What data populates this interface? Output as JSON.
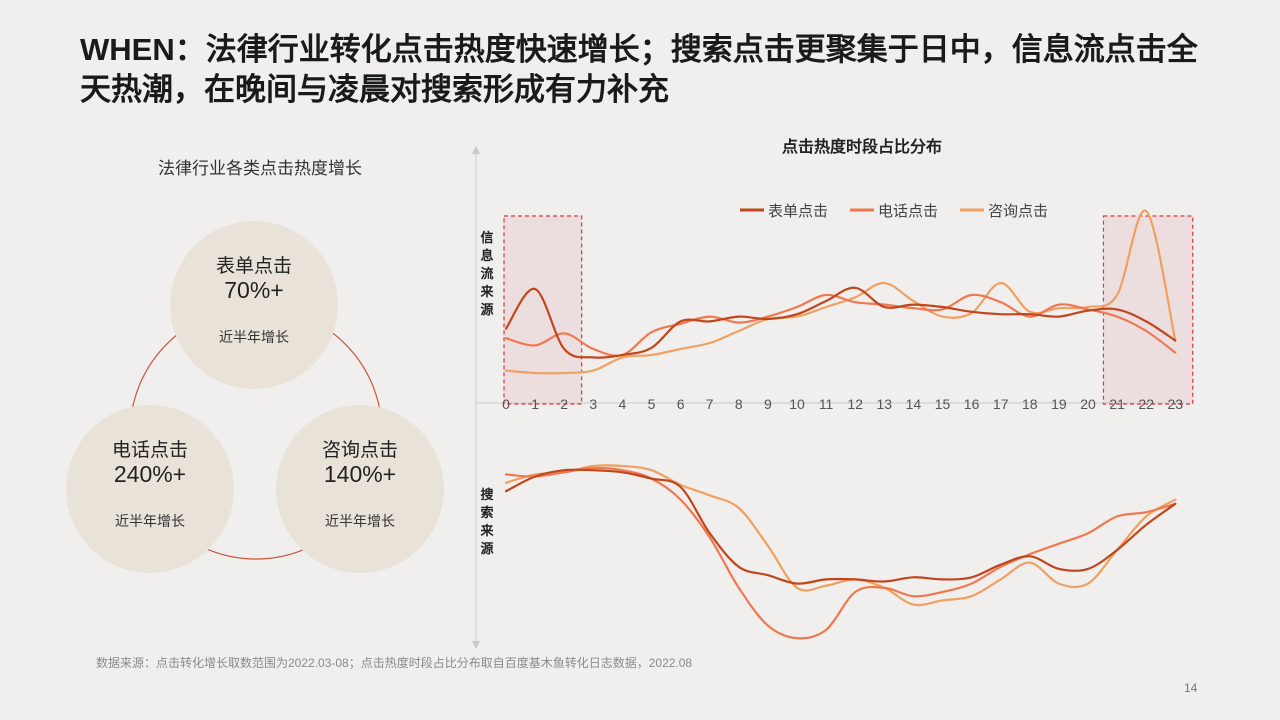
{
  "title": "WHEN：法律行业转化点击热度快速增长；搜索点击更聚集于日中，信息流点击全天热潮，在晚间与凌晨对搜索形成有力补充",
  "left_panel": {
    "title": "法律行业各类点击热度增长",
    "bubbles": [
      {
        "label": "表单点击",
        "value": "70%+",
        "sub": "近半年增长"
      },
      {
        "label": "电话点击",
        "value": "240%+",
        "sub": "近半年增长"
      },
      {
        "label": "咨询点击",
        "value": "140%+",
        "sub": "近半年增长"
      }
    ],
    "colors": {
      "bubble": "#e9e2d8",
      "ring": "#c8553d"
    }
  },
  "chart_data": {
    "type": "line",
    "title": "点击热度时段占比分布",
    "x": [
      0,
      1,
      2,
      3,
      4,
      5,
      6,
      7,
      8,
      9,
      10,
      11,
      12,
      13,
      14,
      15,
      16,
      17,
      18,
      19,
      20,
      21,
      22,
      23
    ],
    "panels": [
      {
        "label": "信息流来源",
        "series": [
          {
            "name": "表单点击",
            "color": "#c0461c",
            "values": [
              0.62,
              0.95,
              0.45,
              0.38,
              0.4,
              0.46,
              0.68,
              0.68,
              0.72,
              0.7,
              0.74,
              0.85,
              0.96,
              0.8,
              0.82,
              0.8,
              0.76,
              0.74,
              0.74,
              0.72,
              0.77,
              0.78,
              0.68,
              0.52
            ]
          },
          {
            "name": "电话点击",
            "color": "#f07850",
            "values": [
              0.54,
              0.48,
              0.58,
              0.45,
              0.4,
              0.59,
              0.66,
              0.72,
              0.67,
              0.72,
              0.8,
              0.9,
              0.84,
              0.82,
              0.79,
              0.78,
              0.9,
              0.84,
              0.72,
              0.82,
              0.78,
              0.72,
              0.6,
              0.42
            ]
          },
          {
            "name": "咨询点击",
            "color": "#f0a060",
            "values": [
              0.27,
              0.25,
              0.25,
              0.27,
              0.38,
              0.4,
              0.45,
              0.5,
              0.6,
              0.7,
              0.72,
              0.8,
              0.88,
              1.0,
              0.85,
              0.72,
              0.75,
              1.0,
              0.76,
              0.79,
              0.8,
              0.9,
              1.6,
              0.52
            ]
          }
        ]
      },
      {
        "label": "搜索来源",
        "series": [
          {
            "name": "表单点击",
            "color": "#c0461c",
            "values": [
              0.78,
              0.85,
              0.88,
              0.88,
              0.87,
              0.84,
              0.8,
              0.58,
              0.42,
              0.38,
              0.34,
              0.36,
              0.36,
              0.35,
              0.37,
              0.36,
              0.37,
              0.43,
              0.47,
              0.41,
              0.41,
              0.5,
              0.62,
              0.72
            ]
          },
          {
            "name": "电话点击",
            "color": "#f07850",
            "values": [
              0.86,
              0.85,
              0.87,
              0.89,
              0.88,
              0.84,
              0.74,
              0.56,
              0.32,
              0.14,
              0.08,
              0.12,
              0.3,
              0.32,
              0.28,
              0.3,
              0.34,
              0.42,
              0.48,
              0.53,
              0.58,
              0.66,
              0.68,
              0.72
            ]
          },
          {
            "name": "咨询点击",
            "color": "#f0a060",
            "values": [
              0.82,
              0.86,
              0.87,
              0.9,
              0.9,
              0.88,
              0.81,
              0.76,
              0.7,
              0.52,
              0.32,
              0.33,
              0.36,
              0.32,
              0.24,
              0.26,
              0.28,
              0.36,
              0.44,
              0.34,
              0.34,
              0.5,
              0.66,
              0.74
            ]
          }
        ]
      }
    ],
    "highlight_ranges": [
      [
        0,
        2.6
      ],
      [
        20.6,
        23.6
      ]
    ],
    "legend": [
      "表单点击",
      "电话点击",
      "咨询点击"
    ],
    "legend_position": "top-center"
  },
  "footer": {
    "source": "数据来源：点击转化增长取数范围为2022.03-08；点击热度时段占比分布取自百度基木鱼转化日志数据，2022.08",
    "page": "14"
  }
}
